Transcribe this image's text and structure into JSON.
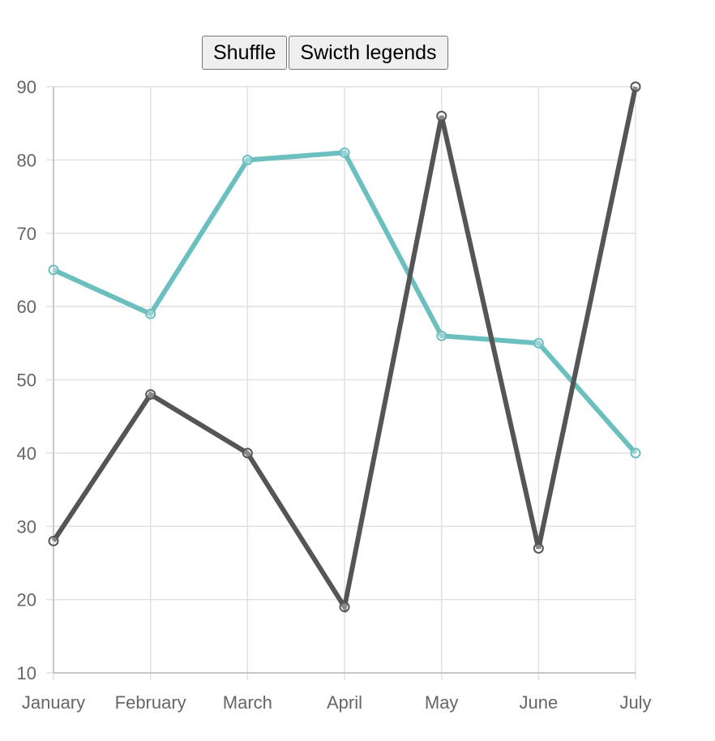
{
  "toolbar": {
    "shuffle_label": "Shuffle",
    "switch_legends_label": "Swicth legends"
  },
  "colors": {
    "grid": "#e1e1e1",
    "axis": "#c8c8c8",
    "tick_text": "#666666"
  },
  "chart_data": {
    "type": "line",
    "categories": [
      "January",
      "February",
      "March",
      "April",
      "May",
      "June",
      "July"
    ],
    "ylim": [
      10,
      90
    ],
    "yticks": [
      10,
      20,
      30,
      40,
      50,
      60,
      70,
      80,
      90
    ],
    "grid": true,
    "legend": "none",
    "series": [
      {
        "color": "#6cbfbf",
        "values": [
          65,
          59,
          80,
          81,
          56,
          55,
          40
        ]
      },
      {
        "color": "#555555",
        "values": [
          28,
          48,
          40,
          19,
          86,
          27,
          90
        ]
      }
    ]
  }
}
